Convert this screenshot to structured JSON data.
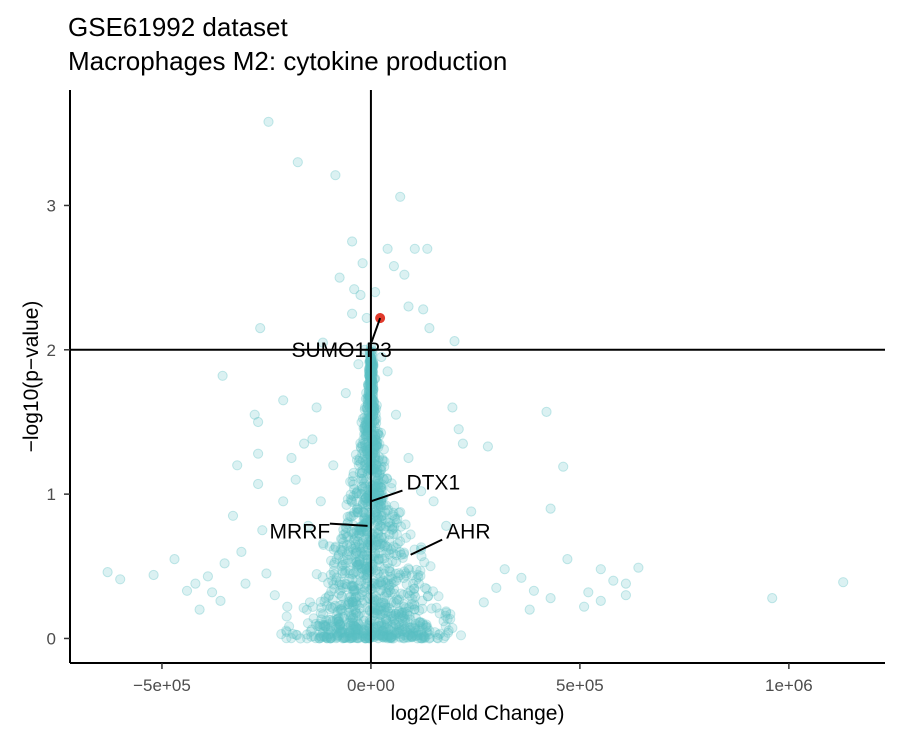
{
  "chart_data": {
    "type": "scatter",
    "title": "GSE61992 dataset",
    "subtitle": "Macrophages M2: cytokine production",
    "xlabel": "log2(Fold Change)",
    "ylabel": "−log10(p−value)",
    "xlim": [
      -720000,
      1230000
    ],
    "ylim": [
      -0.17,
      3.8
    ],
    "x_ticks": [
      {
        "value": -500000,
        "label": "−5e+05"
      },
      {
        "value": 0,
        "label": "0e+00"
      },
      {
        "value": 500000,
        "label": "5e+05"
      },
      {
        "value": 1000000,
        "label": "1e+06"
      }
    ],
    "y_ticks": [
      {
        "value": 0,
        "label": "0"
      },
      {
        "value": 1,
        "label": "1"
      },
      {
        "value": 2,
        "label": "2"
      },
      {
        "value": 3,
        "label": "3"
      }
    ],
    "threshold_x": 0,
    "threshold_y": 2,
    "colors": {
      "points": "#5bc0c4",
      "highlight": "#e0392b",
      "lines": "#000000"
    },
    "highlight_point": {
      "x": 22000,
      "y": 2.22
    },
    "labeled_genes": [
      {
        "name": "SUMO1P3",
        "x": 22000,
        "y": 2.22,
        "label_x": -70000,
        "label_y": 2.0
      },
      {
        "name": "DTX1",
        "x": 0,
        "y": 0.95,
        "label_x": 85000,
        "label_y": 1.08
      },
      {
        "name": "MRRF",
        "x": -8000,
        "y": 0.78,
        "label_x": -170000,
        "label_y": 0.74
      },
      {
        "name": "AHR",
        "x": 95000,
        "y": 0.58,
        "label_x": 180000,
        "label_y": 0.74
      }
    ],
    "points": [
      [
        -245000,
        3.58
      ],
      [
        -175000,
        3.3
      ],
      [
        -85000,
        3.21
      ],
      [
        70000,
        3.06
      ],
      [
        -45000,
        2.75
      ],
      [
        40000,
        2.7
      ],
      [
        105000,
        2.7
      ],
      [
        135000,
        2.7
      ],
      [
        -20000,
        2.6
      ],
      [
        55000,
        2.58
      ],
      [
        80000,
        2.52
      ],
      [
        -75000,
        2.5
      ],
      [
        -40000,
        2.42
      ],
      [
        10000,
        2.4
      ],
      [
        -25000,
        2.38
      ],
      [
        90000,
        2.3
      ],
      [
        125000,
        2.28
      ],
      [
        -45000,
        2.25
      ],
      [
        -10000,
        2.22
      ],
      [
        140000,
        2.15
      ],
      [
        -265000,
        2.15
      ],
      [
        -115000,
        2.05
      ],
      [
        200000,
        2.06
      ],
      [
        -355000,
        1.82
      ],
      [
        -210000,
        1.65
      ],
      [
        -130000,
        1.6
      ],
      [
        195000,
        1.6
      ],
      [
        420000,
        1.57
      ],
      [
        -278000,
        1.55
      ],
      [
        -270000,
        1.5
      ],
      [
        210000,
        1.45
      ],
      [
        -140000,
        1.38
      ],
      [
        -160000,
        1.35
      ],
      [
        220000,
        1.35
      ],
      [
        280000,
        1.33
      ],
      [
        -270000,
        1.28
      ],
      [
        -190000,
        1.25
      ],
      [
        -320000,
        1.2
      ],
      [
        460000,
        1.19
      ],
      [
        -270000,
        1.07
      ],
      [
        -210000,
        0.95
      ],
      [
        -180000,
        1.1
      ],
      [
        120000,
        1.02
      ],
      [
        240000,
        0.88
      ],
      [
        -330000,
        0.85
      ],
      [
        430000,
        0.9
      ],
      [
        -260000,
        0.75
      ],
      [
        -310000,
        0.6
      ],
      [
        -350000,
        0.52
      ],
      [
        -390000,
        0.43
      ],
      [
        -420000,
        0.38
      ],
      [
        -470000,
        0.55
      ],
      [
        -630000,
        0.46
      ],
      [
        -600000,
        0.41
      ],
      [
        -520000,
        0.44
      ],
      [
        -440000,
        0.33
      ],
      [
        -380000,
        0.32
      ],
      [
        -360000,
        0.26
      ],
      [
        -410000,
        0.2
      ],
      [
        320000,
        0.48
      ],
      [
        360000,
        0.42
      ],
      [
        390000,
        0.33
      ],
      [
        430000,
        0.28
      ],
      [
        470000,
        0.55
      ],
      [
        520000,
        0.32
      ],
      [
        550000,
        0.48
      ],
      [
        580000,
        0.4
      ],
      [
        610000,
        0.3
      ],
      [
        640000,
        0.49
      ],
      [
        610000,
        0.38
      ],
      [
        550000,
        0.26
      ],
      [
        510000,
        0.22
      ],
      [
        960000,
        0.28
      ],
      [
        1130000,
        0.39
      ],
      [
        380000,
        0.2
      ],
      [
        -300000,
        0.38
      ],
      [
        -250000,
        0.45
      ],
      [
        -230000,
        0.3
      ],
      [
        300000,
        0.35
      ],
      [
        270000,
        0.25
      ],
      [
        -200000,
        0.22
      ],
      [
        180000,
        0.78
      ],
      [
        150000,
        0.95
      ],
      [
        -120000,
        0.95
      ],
      [
        -150000,
        0.78
      ],
      [
        -90000,
        1.2
      ],
      [
        90000,
        1.25
      ],
      [
        60000,
        1.55
      ],
      [
        -60000,
        1.7
      ],
      [
        40000,
        1.85
      ],
      [
        -30000,
        1.9
      ],
      [
        25000,
        1.95
      ],
      [
        -15000,
        2.0
      ],
      [
        0,
        2.02
      ],
      [
        10000,
        1.8
      ],
      [
        -5000,
        1.7
      ]
    ],
    "cloud": {
      "peak_y": 2.0,
      "base_half_width": 230000
    }
  }
}
